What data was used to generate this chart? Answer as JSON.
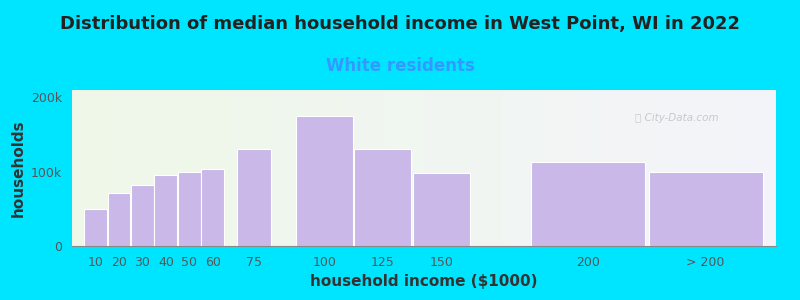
{
  "title": "Distribution of median household income in West Point, WI in 2022",
  "subtitle": "White residents",
  "xlabel": "household income ($1000)",
  "ylabel": "households",
  "bar_color": "#c9b8e8",
  "title_fontsize": 13,
  "subtitle_fontsize": 12,
  "subtitle_color": "#3399ff",
  "axis_label_fontsize": 11,
  "tick_fontsize": 9,
  "background_outer": "#00e5ff",
  "background_plot_left": "#eef8e8",
  "background_plot_right": "#f4f4fa",
  "ylim": [
    0,
    210000
  ],
  "yticks": [
    0,
    100000,
    200000
  ],
  "ytick_labels": [
    "0",
    "100k",
    "200k"
  ],
  "bar_vals": [
    50000,
    72000,
    82000,
    95000,
    100000,
    103000,
    130000,
    175000,
    130000,
    98000,
    113000,
    100000
  ],
  "bar_pos": [
    10,
    20,
    30,
    40,
    50,
    60,
    75,
    100,
    125,
    150,
    200,
    250
  ],
  "bar_wid": [
    10,
    10,
    10,
    10,
    10,
    10,
    15,
    25,
    25,
    25,
    50,
    50
  ],
  "xtick_labels": [
    "10",
    "20",
    "30",
    "40",
    "50",
    "60",
    "75",
    "100",
    "125",
    "150",
    "200",
    "> 200"
  ],
  "xlim": [
    5,
    305
  ]
}
